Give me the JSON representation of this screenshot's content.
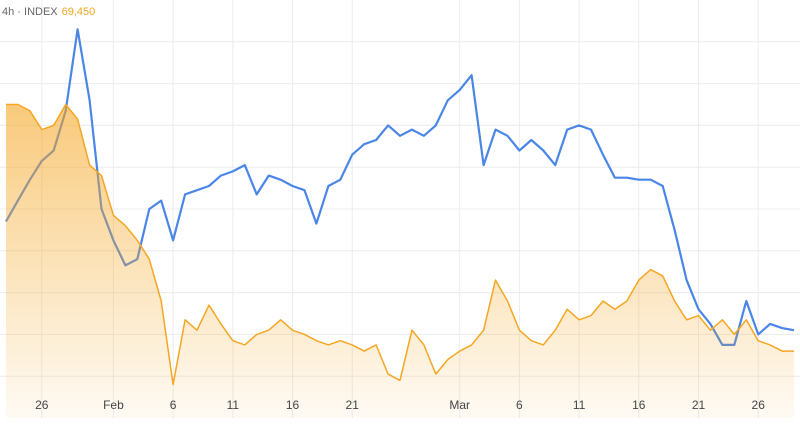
{
  "chart_data": {
    "type": "line",
    "annotations": [
      "4h · INDEX",
      "69,450"
    ],
    "x": [
      23,
      24,
      25,
      26,
      27,
      28,
      29,
      30,
      31,
      32,
      33,
      34,
      35,
      36,
      37,
      38,
      39,
      40,
      41,
      42,
      43,
      44,
      45,
      46,
      47,
      48,
      49,
      50,
      51,
      52,
      53,
      54,
      55,
      56,
      57,
      58,
      59,
      60,
      61,
      62,
      63,
      64,
      65,
      66,
      67,
      68,
      69,
      70,
      71,
      72,
      73,
      74,
      75,
      76,
      77,
      78,
      79,
      80,
      81,
      82,
      83,
      84,
      85,
      86,
      87,
      88,
      89
    ],
    "series": [
      {
        "color": "#4a86e8",
        "area": false,
        "values": [
          47,
          52,
          57,
          61.5,
          64,
          73.5,
          93,
          76,
          50,
          42.5,
          36.5,
          38,
          50,
          52,
          42.5,
          53.5,
          54.5,
          55.5,
          58,
          59,
          60.5,
          53.5,
          58,
          57,
          55.5,
          54.5,
          46.5,
          55.5,
          57,
          63,
          65.5,
          66.5,
          70,
          67.5,
          69,
          67.5,
          70,
          76,
          78.5,
          82,
          60.5,
          69,
          67.5,
          64,
          66.5,
          64,
          60.5,
          69,
          70,
          69,
          63,
          57.5,
          57.5,
          57,
          57,
          55.5,
          45,
          33,
          26,
          22.5,
          17.5,
          17.5,
          28,
          20,
          22.5,
          21.5,
          21
        ]
      },
      {
        "color": "#f5a623",
        "area": true,
        "values": [
          75,
          75,
          73.5,
          69,
          70,
          75,
          71.5,
          60.5,
          58,
          48.5,
          46,
          42.5,
          38,
          28,
          8,
          23.5,
          21,
          27,
          22.5,
          18.5,
          17.5,
          20,
          21,
          23.5,
          21,
          20,
          18.5,
          17.5,
          18.5,
          17.5,
          16,
          17.5,
          10.5,
          9,
          21,
          17.5,
          10.5,
          14,
          16,
          17.5,
          21,
          33,
          28,
          21,
          18.5,
          17.5,
          21,
          26,
          23.5,
          24.5,
          28,
          26,
          28,
          33,
          35.5,
          34,
          28,
          23.5,
          24.5,
          21,
          23.5,
          20,
          23.5,
          18.5,
          17.5,
          16,
          16
        ]
      }
    ],
    "xlim": [
      22.5,
      89.5
    ],
    "xticks": [
      {
        "value": 26,
        "label": "26"
      },
      {
        "value": 32,
        "label": "Feb"
      },
      {
        "value": 37,
        "label": "6"
      },
      {
        "value": 42,
        "label": "11"
      },
      {
        "value": 47,
        "label": "16"
      },
      {
        "value": 52,
        "label": "21"
      },
      {
        "value": 61,
        "label": "Mar"
      },
      {
        "value": 66,
        "label": "6"
      },
      {
        "value": 71,
        "label": "11"
      },
      {
        "value": 76,
        "label": "16"
      },
      {
        "value": 81,
        "label": "21"
      },
      {
        "value": 86,
        "label": "26"
      }
    ],
    "ylim": [
      0,
      100
    ],
    "yticks": [
      10,
      20,
      30,
      40,
      50,
      60,
      70,
      80,
      90
    ],
    "grid": true
  }
}
